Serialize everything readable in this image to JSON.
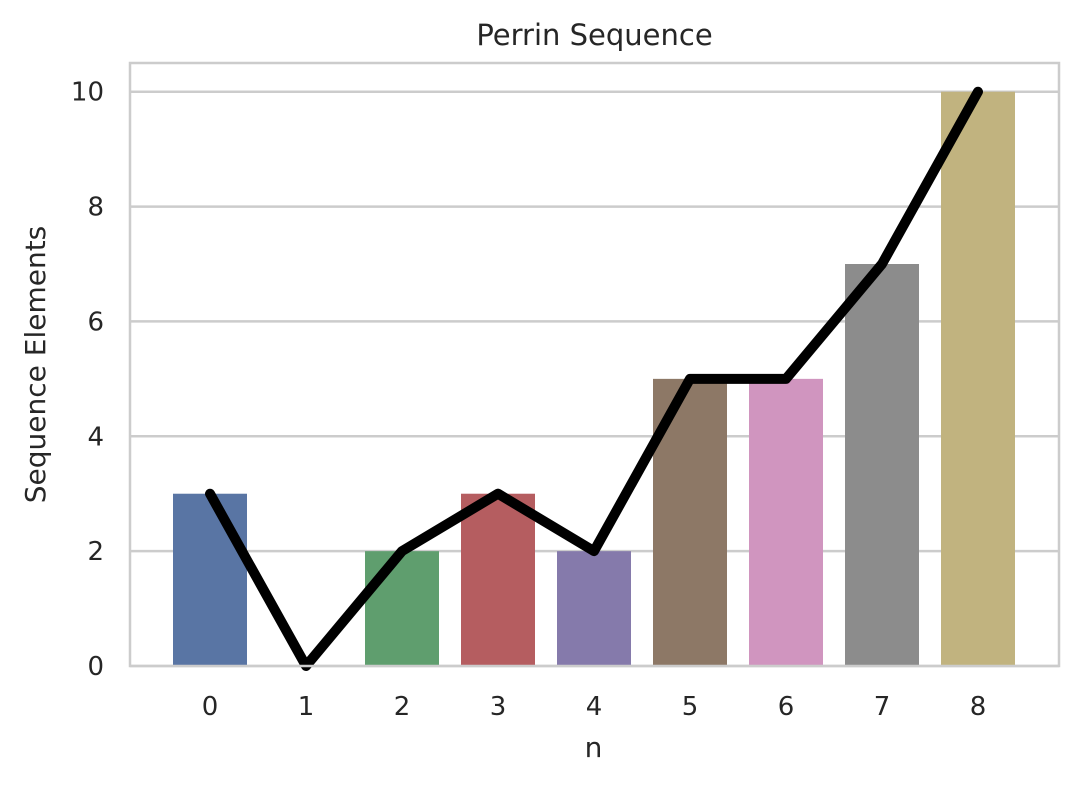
{
  "chart_data": {
    "type": "bar",
    "title": "Perrin Sequence",
    "xlabel": "n",
    "ylabel": "Sequence Elements",
    "categories": [
      "0",
      "1",
      "2",
      "3",
      "4",
      "5",
      "6",
      "7",
      "8"
    ],
    "series": [
      {
        "type": "bar",
        "values": [
          3,
          0,
          2,
          3,
          2,
          5,
          5,
          7,
          10
        ],
        "colors": [
          "#5975a4",
          "#cc8963",
          "#5f9e6e",
          "#b55d60",
          "#857aab",
          "#8d7866",
          "#d095bf",
          "#8c8c8c",
          "#c1b37f"
        ]
      },
      {
        "type": "line",
        "values": [
          3,
          0,
          2,
          3,
          2,
          5,
          5,
          7,
          10
        ],
        "color": "#000000"
      }
    ],
    "ylim": [
      0,
      10.5
    ],
    "yticks": [
      0,
      2,
      4,
      6,
      8,
      10
    ],
    "grid": true,
    "legend": "none"
  }
}
